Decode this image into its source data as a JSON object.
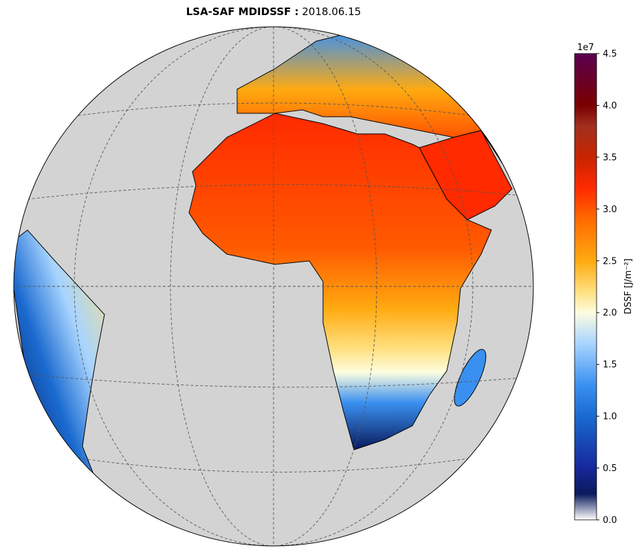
{
  "title": {
    "product": "LSA-SAF MDIDSSF :",
    "date": "2018.06.15"
  },
  "colorbar": {
    "label": "DSSF [J/m⁻²]",
    "offset_label": "1e7",
    "lim": [
      0,
      4.5
    ],
    "ticks": [
      {
        "value": 0,
        "label": "0.0"
      },
      {
        "value": 0.5,
        "label": "0.5"
      },
      {
        "value": 1,
        "label": "1.0"
      },
      {
        "value": 1.5,
        "label": "1.5"
      },
      {
        "value": 2,
        "label": "2.0"
      },
      {
        "value": 2.5,
        "label": "2.5"
      },
      {
        "value": 3,
        "label": "3.0"
      },
      {
        "value": 3.5,
        "label": "3.5"
      },
      {
        "value": 4,
        "label": "4.0"
      },
      {
        "value": 4.5,
        "label": "4.5"
      }
    ],
    "colormap": [
      {
        "value": 0,
        "color": "#ffffff"
      },
      {
        "value": 0.25,
        "color": "#0a1a5c"
      },
      {
        "value": 0.5,
        "color": "#16289a"
      },
      {
        "value": 1,
        "color": "#1a6ad0"
      },
      {
        "value": 1.3,
        "color": "#3a90f0"
      },
      {
        "value": 1.7,
        "color": "#a8d4ff"
      },
      {
        "value": 2,
        "color": "#fdfde0"
      },
      {
        "value": 2.2,
        "color": "#ffe080"
      },
      {
        "value": 2.5,
        "color": "#ffaa10"
      },
      {
        "value": 2.9,
        "color": "#ff6a00"
      },
      {
        "value": 3.2,
        "color": "#ff2a00"
      },
      {
        "value": 3.5,
        "color": "#c82400"
      },
      {
        "value": 3.8,
        "color": "#a03020"
      },
      {
        "value": 4,
        "color": "#7a0000"
      },
      {
        "value": 4.5,
        "color": "#5a0050"
      }
    ]
  }
}
